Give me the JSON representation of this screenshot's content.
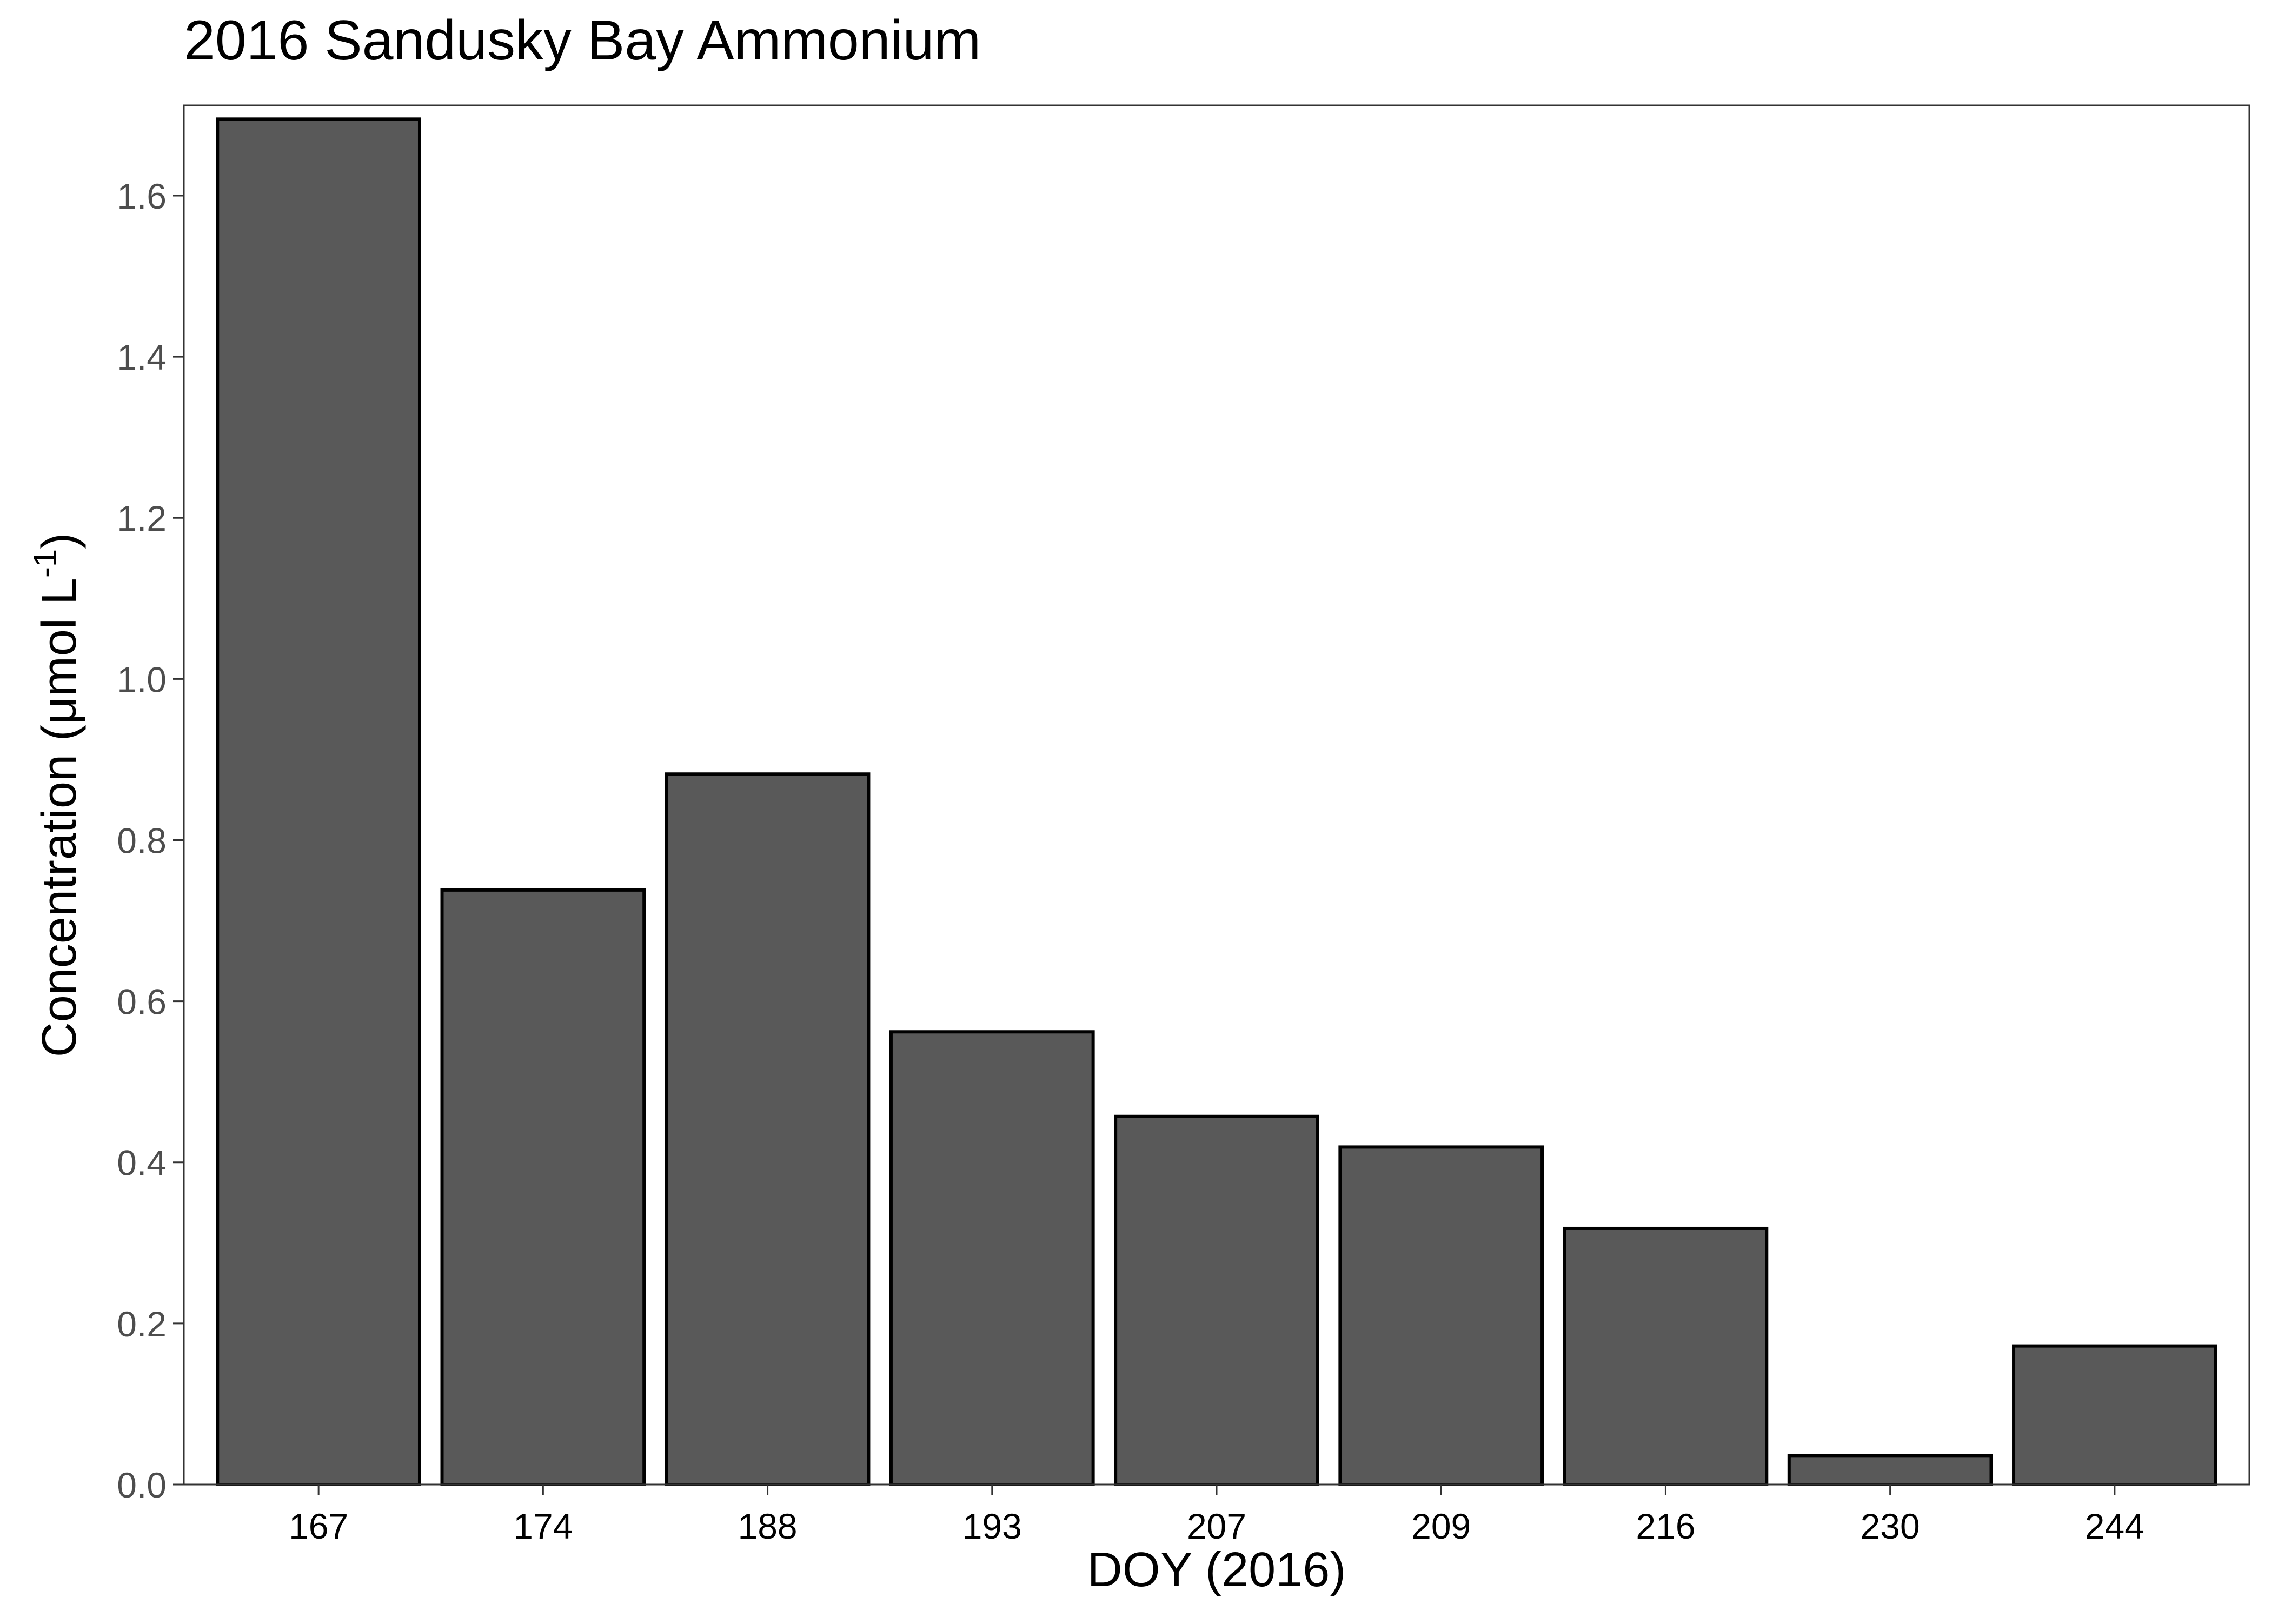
{
  "chart_data": {
    "type": "bar",
    "title": "2016 Sandusky Bay Ammonium",
    "xlabel": "DOY (2016)",
    "ylabel_main": "Concentration (μmol L",
    "ylabel_sup": "-1",
    "ylabel_close": ")",
    "categories": [
      "167",
      "174",
      "188",
      "193",
      "207",
      "209",
      "216",
      "230",
      "244"
    ],
    "values": [
      1.695,
      0.738,
      0.882,
      0.562,
      0.457,
      0.419,
      0.318,
      0.036,
      0.172
    ],
    "ylim": [
      0,
      1.712
    ],
    "yticks": [
      0.0,
      0.2,
      0.4,
      0.6,
      0.8,
      1.0,
      1.2,
      1.4,
      1.6
    ],
    "ytick_labels": [
      "0.0",
      "0.2",
      "0.4",
      "0.6",
      "0.8",
      "1.0",
      "1.2",
      "1.4",
      "1.6"
    ],
    "grid": false,
    "legend": "none",
    "bar_fill": "#595959",
    "bar_stroke": "#000000",
    "text_color": "#000000",
    "tick_label_color": "#4d4d4d"
  }
}
